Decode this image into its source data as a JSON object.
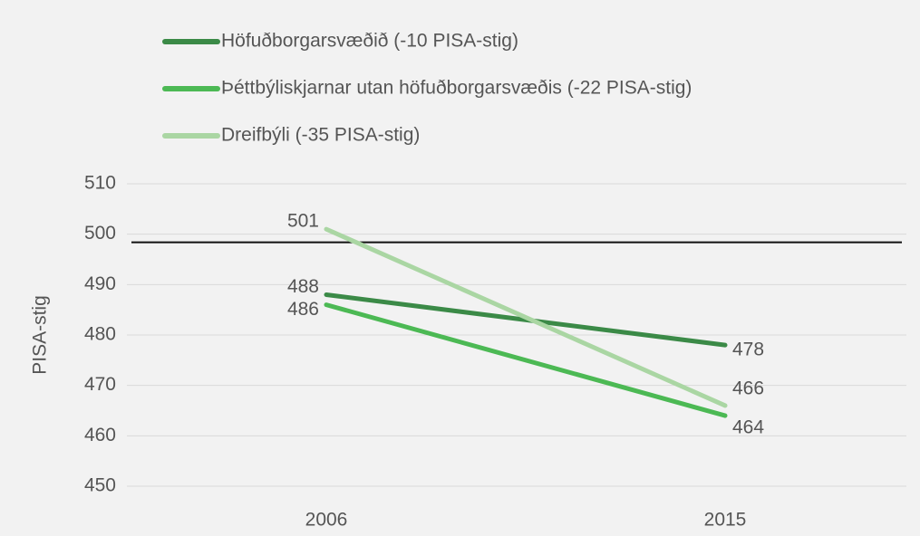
{
  "chart_data": {
    "type": "line",
    "y_label": "PISA-stig",
    "categories": [
      "2006",
      "2015"
    ],
    "series": [
      {
        "name": "Höfuðborgarsvæðið (-10 PISA-stig)",
        "color": "#3b8a47",
        "values": [
          488,
          478
        ]
      },
      {
        "name": "Þéttbýliskjarnar utan höfuðborgarsvæðis (-22 PISA-stig)",
        "color": "#4cb954",
        "values": [
          486,
          464
        ]
      },
      {
        "name": "Dreifbýli (-35 PISA-stig)",
        "color": "#aad6a3",
        "values": [
          501,
          466
        ]
      }
    ],
    "reference_line": 498.4,
    "ylim": [
      450,
      510
    ],
    "yticks": [
      450,
      460,
      470,
      480,
      490,
      500,
      510
    ],
    "grid": true,
    "legend": "top-left"
  }
}
